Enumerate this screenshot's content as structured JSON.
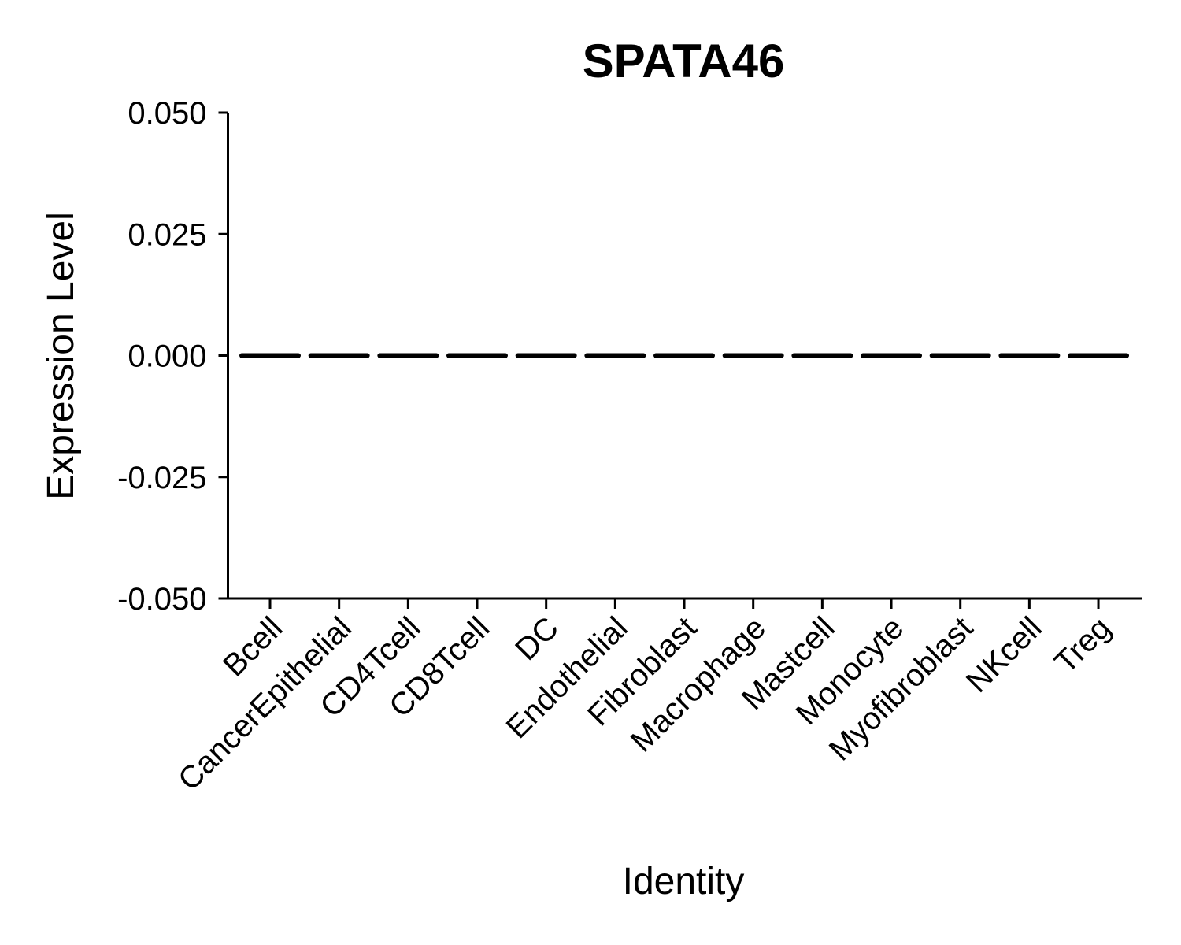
{
  "chart_data": {
    "type": "scatter",
    "title": "SPATA46",
    "xlabel": "Identity",
    "ylabel": "Expression Level",
    "categories": [
      "Bcell",
      "CancerEpithelial",
      "CD4Tcell",
      "CD8Tcell",
      "DC",
      "Endothelial",
      "Fibroblast",
      "Macrophage",
      "Mastcell",
      "Monocyte",
      "Myofibroblast",
      "NKcell",
      "Treg"
    ],
    "values": [
      0,
      0,
      0,
      0,
      0,
      0,
      0,
      0,
      0,
      0,
      0,
      0,
      0
    ],
    "ylim": [
      -0.05,
      0.05
    ],
    "yticks": [
      "-0.050",
      "-0.025",
      "0.000",
      "0.025",
      "0.050"
    ],
    "grid": false,
    "legend": "none"
  }
}
